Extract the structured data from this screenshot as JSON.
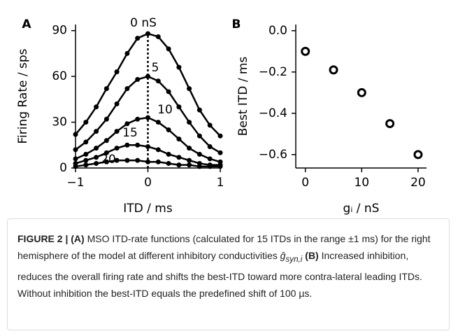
{
  "chart_data": [
    {
      "type": "line",
      "panel_label": "A",
      "x_label": "ITD / ms",
      "y_label": "Firing Rate / sps",
      "x": [
        -1,
        -0.857,
        -0.714,
        -0.571,
        -0.429,
        -0.286,
        -0.143,
        0,
        0.143,
        0.286,
        0.429,
        0.571,
        0.714,
        0.857,
        1
      ],
      "series": [
        {
          "name": "0 nS",
          "color": "#000000",
          "values": [
            22,
            30,
            40,
            52,
            63,
            75,
            85,
            88,
            86,
            78,
            66,
            52,
            38,
            28,
            21
          ]
        },
        {
          "name": "5",
          "color": "#000000",
          "values": [
            12,
            17,
            24,
            32,
            42,
            52,
            58,
            60,
            57,
            50,
            40,
            30,
            21,
            14,
            10
          ]
        },
        {
          "name": "10",
          "color": "#000000",
          "values": [
            6,
            9,
            13,
            18,
            24,
            29,
            32,
            33,
            30,
            25,
            19,
            13,
            9,
            6,
            4
          ]
        },
        {
          "name": "15",
          "color": "#000000",
          "values": [
            3,
            5,
            7,
            10,
            13,
            15,
            15,
            14,
            12,
            9,
            7,
            5,
            3,
            2,
            2
          ]
        },
        {
          "name": "20",
          "color": "#000000",
          "values": [
            1,
            2,
            3,
            4,
            5,
            5,
            5,
            4,
            4,
            3,
            2,
            2,
            1,
            1,
            1
          ]
        }
      ],
      "xlim": [
        -1,
        1
      ],
      "xticks": [
        {
          "value": -1,
          "label": "−1"
        },
        0,
        1
      ],
      "ylim": [
        0,
        94
      ],
      "yticks": [
        0,
        30,
        60,
        90
      ]
    },
    {
      "type": "scatter",
      "panel_label": "B",
      "x_label": "gᵢ / nS",
      "y_label": "Best ITD / ms",
      "x": [
        0,
        5,
        10,
        15,
        20
      ],
      "series": [
        {
          "color": "#000000",
          "values": [
            -0.1,
            -0.19,
            -0.3,
            -0.45,
            -0.6
          ]
        }
      ],
      "xlim": [
        -1.7,
        21.5
      ],
      "xticks": [
        0,
        10,
        20
      ],
      "ylim": [
        -0.665,
        0.03
      ],
      "yticks": [
        {
          "value": 0,
          "label": "0.0"
        },
        {
          "value": -0.2,
          "label": "−0.2"
        },
        {
          "value": -0.4,
          "label": "−0.4"
        },
        {
          "value": -0.6,
          "label": "−0.6"
        }
      ]
    }
  ],
  "caption": {
    "figure_label": "FIGURE 2 |",
    "part_a": "(A)",
    "text_a": "MSO ITD-rate functions (calculated for 15 ITDs in the range ±1 ms) for the right hemisphere of the model at different inhibitory conductivities",
    "symbol": "ĝ",
    "symbol_sub": "syn,i",
    "part_b": "(B)",
    "text_b": "Increased inhibition, reduces the overall firing rate and shifts the best-ITD toward more contra-lateral leading ITDs. Without inhibition the best-ITD equals the predefined shift of 100 µs."
  }
}
